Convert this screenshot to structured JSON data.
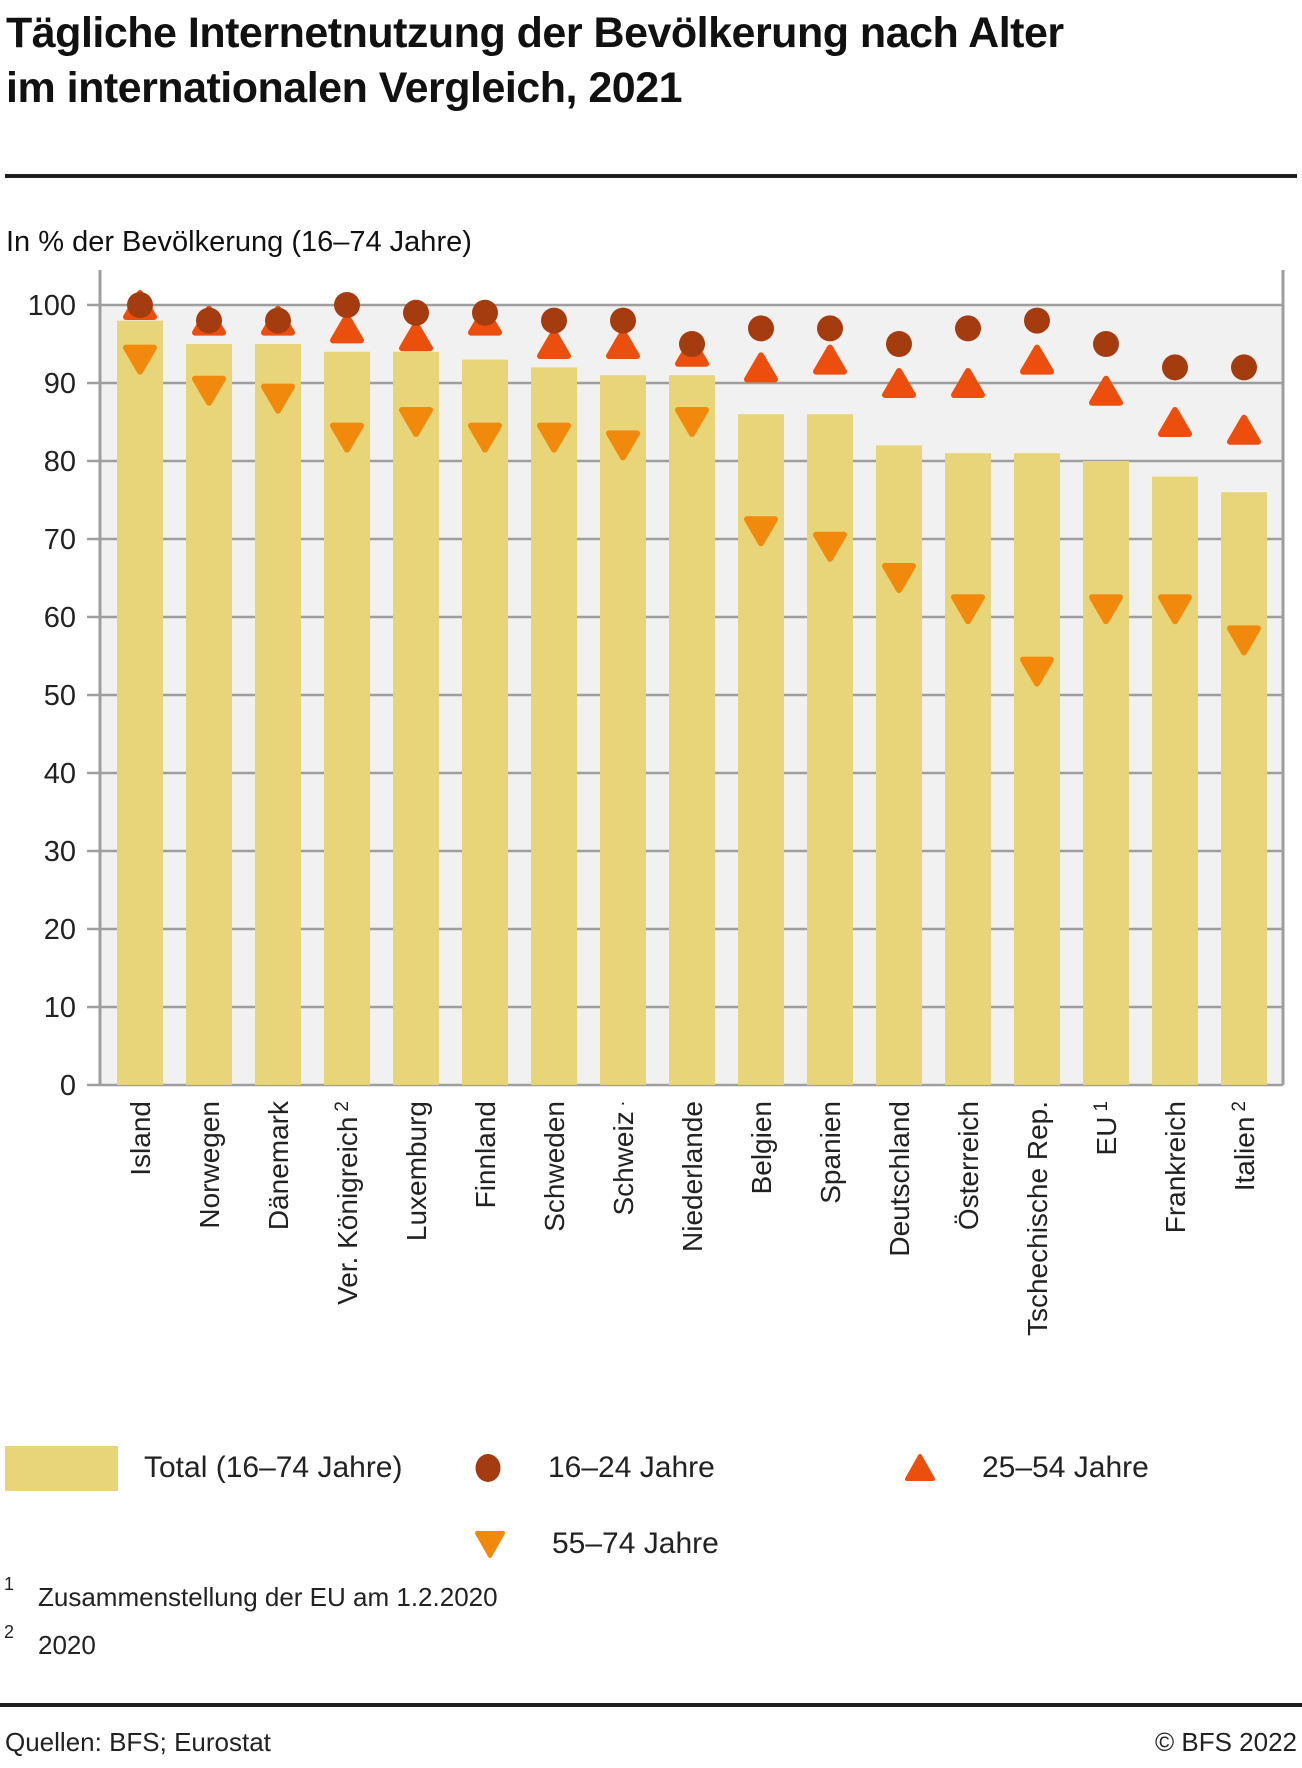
{
  "header": {
    "title_line1": "Tägliche Internetnutzung der Bevölkerung nach Alter",
    "title_line2": "im internationalen Vergleich, 2021",
    "subtitle": "In % der Bevölkerung (16–74 Jahre)"
  },
  "chart_data": {
    "type": "bar",
    "title": "Tägliche Internetnutzung der Bevölkerung nach Alter im internationalen Vergleich, 2021",
    "ylabel": "In % der Bevölkerung (16–74 Jahre)",
    "ylim": [
      0,
      100
    ],
    "yticks": [
      0,
      10,
      20,
      30,
      40,
      50,
      60,
      70,
      80,
      90,
      100
    ],
    "grid": true,
    "legend_position": "bottom",
    "colors": {
      "plot_bg": "#f1f1f1",
      "grid": "#9e9e9e"
    },
    "categories": [
      {
        "label": "Island",
        "sup": ""
      },
      {
        "label": "Norwegen",
        "sup": ""
      },
      {
        "label": "Dänemark",
        "sup": ""
      },
      {
        "label": "Ver. Königreich",
        "sup": "2"
      },
      {
        "label": "Luxemburg",
        "sup": ""
      },
      {
        "label": "Finnland",
        "sup": ""
      },
      {
        "label": "Schweden",
        "sup": ""
      },
      {
        "label": "Schweiz",
        "sup": "."
      },
      {
        "label": "Niederlande",
        "sup": ""
      },
      {
        "label": "Belgien",
        "sup": ""
      },
      {
        "label": "Spanien",
        "sup": ""
      },
      {
        "label": "Deutschland",
        "sup": ""
      },
      {
        "label": "Österreich",
        "sup": ""
      },
      {
        "label": "Tschechische Rep.",
        "sup": ""
      },
      {
        "label": "EU",
        "sup": "1"
      },
      {
        "label": "Frankreich",
        "sup": ""
      },
      {
        "label": "Italien",
        "sup": "2"
      }
    ],
    "series": [
      {
        "name": "Total (16–74 Jahre)",
        "marker": "bar",
        "color": "#e8d57a",
        "values": [
          98,
          95,
          95,
          94,
          94,
          93,
          92,
          91,
          91,
          86,
          86,
          82,
          81,
          81,
          80,
          78,
          76
        ]
      },
      {
        "name": "16–24 Jahre",
        "marker": "circle",
        "color": "#a43c10",
        "values": [
          100,
          98,
          98,
          100,
          99,
          99,
          98,
          98,
          95,
          97,
          97,
          95,
          97,
          98,
          95,
          92,
          92
        ]
      },
      {
        "name": "25–54 Jahre",
        "marker": "triangle-up",
        "color": "#ec4e0e",
        "values": [
          100,
          98,
          98,
          97,
          96,
          98,
          95,
          95,
          94,
          92,
          93,
          90,
          90,
          93,
          89,
          85,
          84
        ]
      },
      {
        "name": "55–74 Jahre",
        "marker": "triangle-down",
        "color": "#f18a0c",
        "values": [
          93,
          89,
          88,
          83,
          85,
          83,
          83,
          82,
          85,
          71,
          69,
          65,
          61,
          53,
          61,
          61,
          57
        ]
      }
    ]
  },
  "footnotes": [
    {
      "marker": "1",
      "text": "Zusammenstellung der EU am 1.2.2020"
    },
    {
      "marker": "2",
      "text": "2020"
    }
  ],
  "footer": {
    "source": "Quellen: BFS; Eurostat",
    "copyright": "© BFS 2022"
  }
}
